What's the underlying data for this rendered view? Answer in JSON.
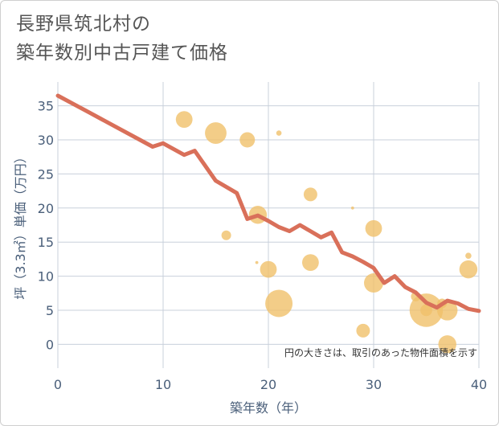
{
  "chart_data": {
    "type": "scatter",
    "title": [
      "長野県筑北村の",
      "築年数別中古戸建て価格"
    ],
    "xlabel": "築年数（年）",
    "ylabel": "坪（3.3㎡）単価（万円）",
    "xlim": [
      0,
      40
    ],
    "ylim": [
      -3.5,
      38.5
    ],
    "xticks": [
      0,
      10,
      20,
      30,
      40
    ],
    "yticks": [
      0,
      5,
      10,
      15,
      20,
      25,
      30,
      35
    ],
    "grid": true,
    "note": "円の大きさは、取引のあった物件面積を示す",
    "colors": {
      "bubble": "#f0c16a",
      "trend": "#d9705a",
      "grid": "#c8d0db",
      "text": "#4a5f7a"
    },
    "points": [
      {
        "x": 12,
        "y": 33,
        "size": 3
      },
      {
        "x": 15,
        "y": 31,
        "size": 5
      },
      {
        "x": 18,
        "y": 30,
        "size": 2.5
      },
      {
        "x": 21,
        "y": 31,
        "size": 0.3
      },
      {
        "x": 16,
        "y": 16,
        "size": 1
      },
      {
        "x": 18.9,
        "y": 12,
        "size": 0.1
      },
      {
        "x": 19,
        "y": 19,
        "size": 3.5
      },
      {
        "x": 20,
        "y": 11,
        "size": 3
      },
      {
        "x": 21,
        "y": 6,
        "size": 8
      },
      {
        "x": 24,
        "y": 22,
        "size": 2
      },
      {
        "x": 24,
        "y": 12,
        "size": 3
      },
      {
        "x": 28,
        "y": 20,
        "size": 0.1
      },
      {
        "x": 29,
        "y": 2,
        "size": 2
      },
      {
        "x": 30,
        "y": 17,
        "size": 3
      },
      {
        "x": 30,
        "y": 9,
        "size": 4
      },
      {
        "x": 34,
        "y": 7,
        "size": 1
      },
      {
        "x": 35,
        "y": 5,
        "size": 12
      },
      {
        "x": 35,
        "y": 5,
        "size": 1.5
      },
      {
        "x": 36.5,
        "y": 6,
        "size": 1
      },
      {
        "x": 37,
        "y": 5,
        "size": 4.5
      },
      {
        "x": 37,
        "y": 0,
        "size": 3.5
      },
      {
        "x": 39,
        "y": 13,
        "size": 0.4
      },
      {
        "x": 39,
        "y": 11,
        "size": 3.5
      }
    ],
    "trend": {
      "x": [
        0,
        3,
        6,
        9,
        10,
        12,
        13,
        15,
        17,
        18,
        19,
        20,
        21,
        22,
        23,
        24,
        25,
        26,
        27,
        28,
        29,
        30,
        31,
        32,
        33,
        34,
        35,
        36,
        37,
        38,
        39,
        40
      ],
      "y": [
        36.5,
        34,
        31.5,
        29,
        29.5,
        27.8,
        28.4,
        24,
        22.2,
        18.4,
        18.9,
        18.1,
        17.2,
        16.6,
        17.5,
        16.6,
        15.7,
        16.4,
        13.5,
        12.9,
        12.1,
        11.2,
        9,
        10,
        8.4,
        7.6,
        6.1,
        5.4,
        6.4,
        6,
        5.2,
        4.9
      ]
    }
  }
}
